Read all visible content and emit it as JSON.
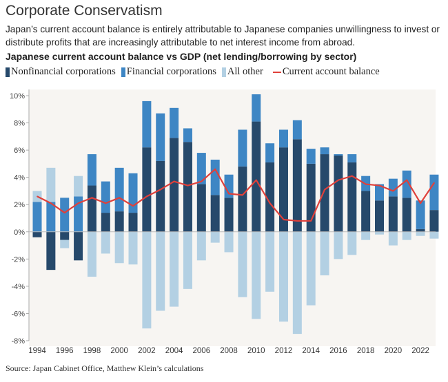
{
  "title": "Corporate Conservatism",
  "subtitle": "Japan’s current account balance is entirely attributable to Japanese companies unwillingness to invest or distribute profits that are increasingly attributable to net interest income from abroad.",
  "source": "Source: Japan Cabinet Office, Matthew Klein’s calculations",
  "chart_data": {
    "type": "bar",
    "stacked": true,
    "title": "Japanese current account balance vs GDP (net lending/borrowing by sector)",
    "xlabel": "",
    "ylabel": "",
    "ylim": [
      -8,
      10
    ],
    "yticks": [
      "10%",
      "8%",
      "6%",
      "4%",
      "2%",
      "0%",
      "-2%",
      "-4%",
      "-6%",
      "-8%"
    ],
    "xticks": [
      "1994",
      "1996",
      "1998",
      "2000",
      "2002",
      "2004",
      "2006",
      "2008",
      "2010",
      "2012",
      "2014",
      "2016",
      "2018",
      "2020",
      "2022"
    ],
    "legend_position": "top",
    "grid": false,
    "categories": [
      1994,
      1995,
      1996,
      1997,
      1998,
      1999,
      2000,
      2001,
      2002,
      2003,
      2004,
      2005,
      2006,
      2007,
      2008,
      2009,
      2010,
      2011,
      2012,
      2013,
      2014,
      2015,
      2016,
      2017,
      2018,
      2019,
      2020,
      2021,
      2022,
      2023
    ],
    "series": [
      {
        "name": "Nonfinancial corporations",
        "type": "bar",
        "color": "#26496b",
        "values": [
          -0.4,
          -2.8,
          -0.6,
          -2.1,
          3.4,
          1.4,
          1.5,
          1.4,
          6.2,
          5.2,
          6.9,
          6.6,
          3.5,
          2.7,
          2.5,
          4.8,
          8.1,
          5.1,
          6.2,
          6.8,
          5.0,
          5.7,
          5.6,
          5.1,
          3.0,
          2.3,
          2.6,
          2.5,
          0.2,
          1.6
        ]
      },
      {
        "name": "Financial corporations",
        "type": "bar",
        "color": "#3e86c4",
        "values": [
          2.2,
          2.2,
          2.5,
          2.6,
          2.3,
          2.3,
          3.2,
          2.9,
          3.4,
          3.5,
          2.2,
          1.0,
          2.3,
          2.6,
          1.7,
          2.7,
          2.0,
          1.4,
          1.3,
          1.4,
          1.1,
          0.5,
          0.1,
          0.6,
          1.1,
          1.2,
          1.3,
          2.0,
          2.1,
          2.6
        ]
      },
      {
        "name": "All other",
        "type": "bar",
        "color": "#b3d0e3",
        "values": [
          0.8,
          2.5,
          -0.6,
          1.5,
          -3.3,
          -1.6,
          -2.3,
          -2.4,
          -7.1,
          -5.8,
          -5.5,
          -4.2,
          -2.1,
          -0.8,
          -1.5,
          -4.8,
          -6.4,
          -4.4,
          -6.6,
          -7.5,
          -5.4,
          -3.2,
          -2.0,
          -1.7,
          -0.6,
          -0.2,
          -1.0,
          -0.6,
          -0.3,
          -0.5
        ]
      },
      {
        "name": "Current account balance",
        "type": "line",
        "color": "#e0403a",
        "values": [
          2.6,
          2.1,
          1.4,
          2.1,
          2.5,
          2.1,
          2.5,
          1.9,
          2.6,
          3.1,
          3.7,
          3.4,
          3.7,
          4.6,
          2.8,
          2.7,
          3.8,
          2.1,
          0.9,
          0.8,
          0.8,
          3.1,
          3.8,
          4.1,
          3.5,
          3.4,
          3.0,
          3.8,
          2.1,
          3.6
        ]
      }
    ]
  }
}
